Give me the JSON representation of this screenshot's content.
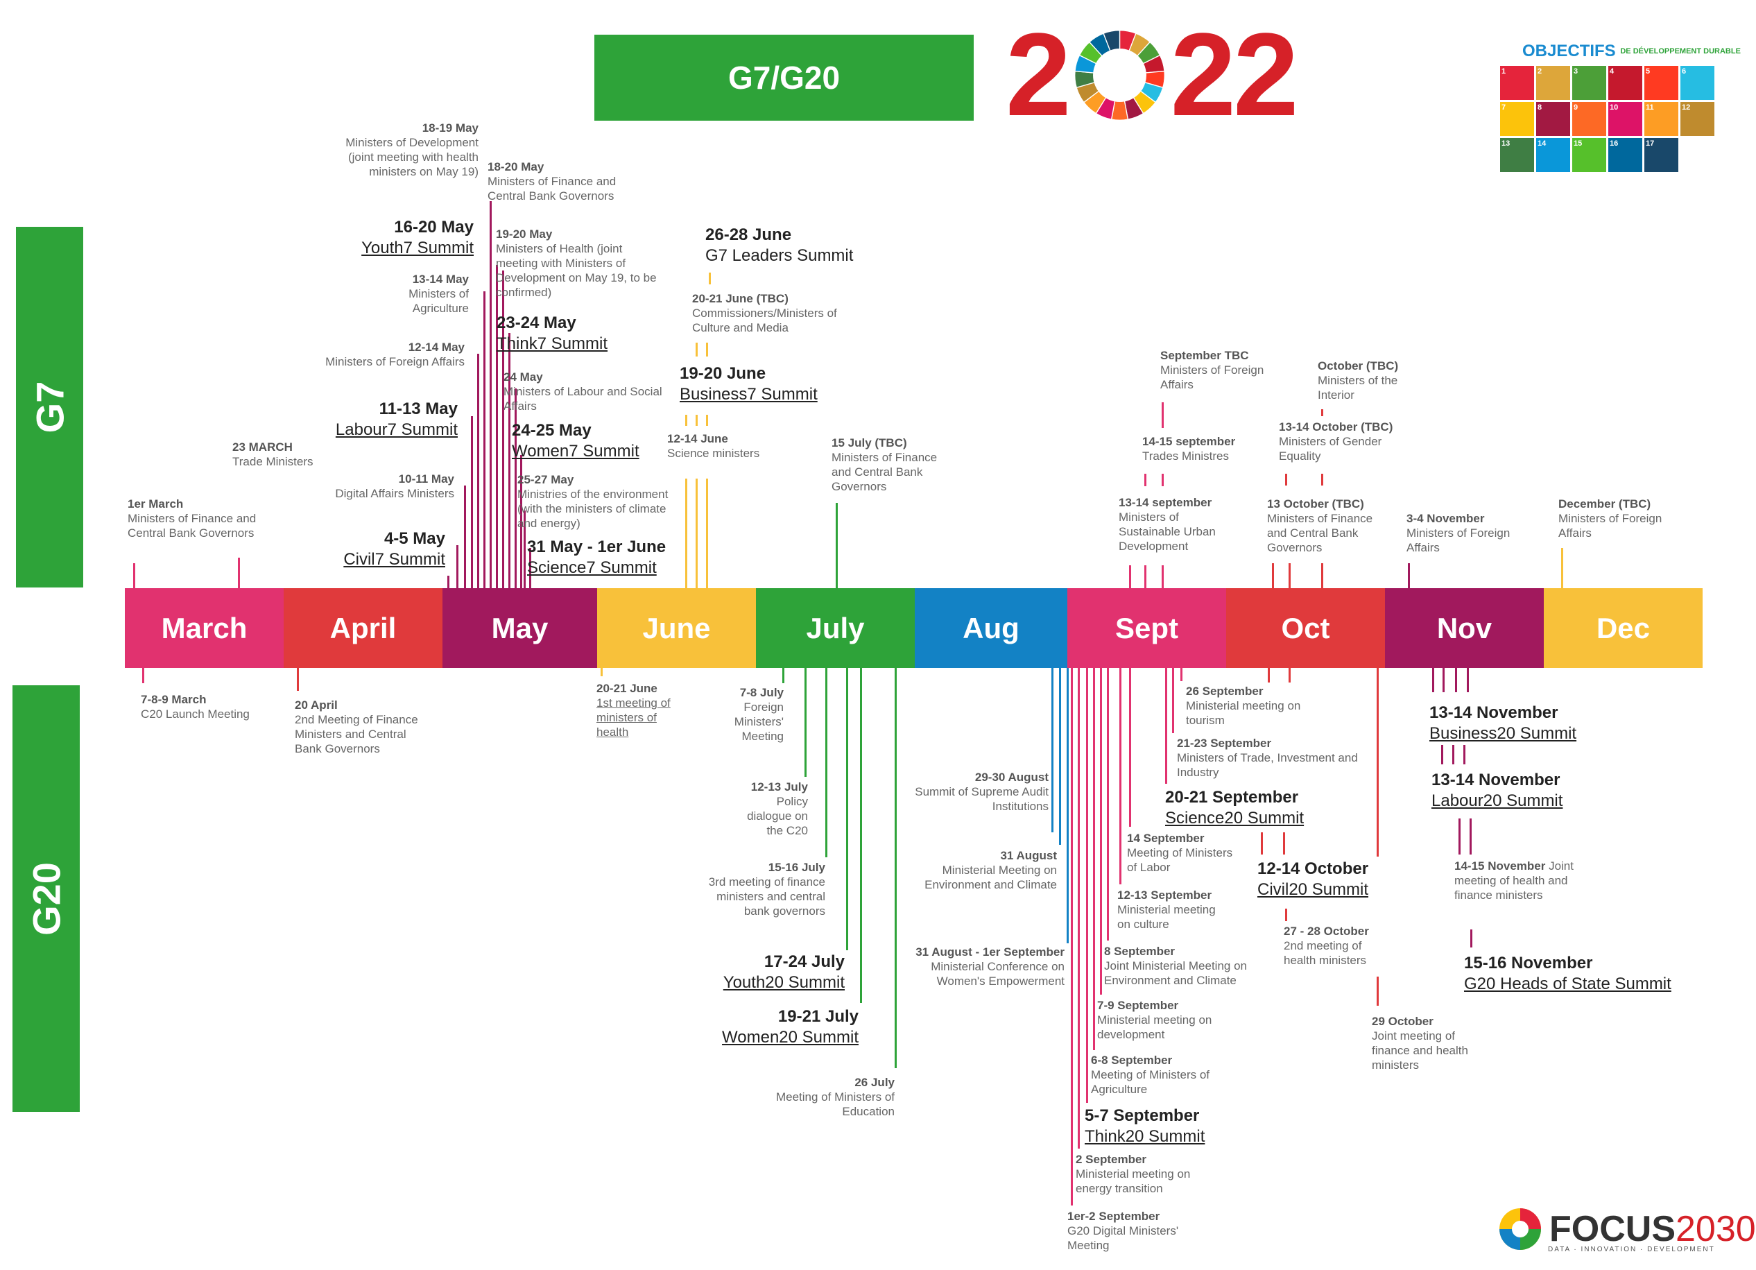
{
  "header": {
    "title": "G7/G20",
    "year_left": "2",
    "year_right": "22"
  },
  "sides": {
    "g7": "G7",
    "g20": "G20"
  },
  "sdg": {
    "title_main": "OBJECTIFS",
    "title_sub": "DE DÉVELOPPEMENT DURABLE",
    "tiles": [
      {
        "num": "1",
        "color": "#e5243b"
      },
      {
        "num": "2",
        "color": "#dda63a"
      },
      {
        "num": "3",
        "color": "#4c9f38"
      },
      {
        "num": "4",
        "color": "#c5192d"
      },
      {
        "num": "5",
        "color": "#ff3a21"
      },
      {
        "num": "6",
        "color": "#26bde2"
      },
      {
        "num": "7",
        "color": "#fcc30b"
      },
      {
        "num": "8",
        "color": "#a21942"
      },
      {
        "num": "9",
        "color": "#fd6925"
      },
      {
        "num": "10",
        "color": "#dd1367"
      },
      {
        "num": "11",
        "color": "#fd9d24"
      },
      {
        "num": "12",
        "color": "#bf8b2e"
      },
      {
        "num": "13",
        "color": "#3f7e44"
      },
      {
        "num": "14",
        "color": "#0a97d9"
      },
      {
        "num": "15",
        "color": "#56c02b"
      },
      {
        "num": "16",
        "color": "#00689d"
      },
      {
        "num": "17",
        "color": "#19486a"
      },
      {
        "num": "",
        "color": "#ffffff"
      }
    ]
  },
  "months": [
    {
      "label": "March",
      "color": "#e1326f"
    },
    {
      "label": "April",
      "color": "#e03a3c"
    },
    {
      "label": "May",
      "color": "#a1195d"
    },
    {
      "label": "June",
      "color": "#f8c13a"
    },
    {
      "label": "July",
      "color": "#2ea339"
    },
    {
      "label": "Aug",
      "color": "#1382c5"
    },
    {
      "label": "Sept",
      "color": "#e1326f"
    },
    {
      "label": "Oct",
      "color": "#e03a3c"
    },
    {
      "label": "Nov",
      "color": "#a1195d"
    },
    {
      "label": "Dec",
      "color": "#f8c13a"
    }
  ],
  "g7_events": {
    "mar1": {
      "date": "1er March",
      "text": "Ministers of Finance and\nCentral Bank Governors"
    },
    "mar23": {
      "date": "23 MARCH",
      "text": "Trade Ministers"
    },
    "may4": {
      "date": "4-5 May",
      "name": "Civil7 Summit"
    },
    "may10": {
      "date": "10-11 May",
      "text": "Digital Affairs Ministers"
    },
    "may11": {
      "date": "11-13 May",
      "name": "Labour7 Summit"
    },
    "may12": {
      "date": "12-14 May",
      "text": "Ministers of Foreign Affairs"
    },
    "may13": {
      "date": "13-14 May",
      "text": "Ministers of\nAgriculture"
    },
    "may16": {
      "date": "16-20 May",
      "name": "Youth7 Summit"
    },
    "may18a": {
      "date": "18-19 May",
      "text": "Ministers of Development\n(joint meeting with health\nministers on May 19)"
    },
    "may18b": {
      "date": "18-20 May",
      "text": "Ministers of Finance and\nCentral Bank Governors"
    },
    "may19": {
      "date": "19-20 May",
      "text": "Ministers of Health (joint\nmeeting with Ministers of\nDevelopment on May 19, to be\nconfirmed)"
    },
    "may23": {
      "date": "23-24 May",
      "name": "Think7 Summit"
    },
    "may24a": {
      "date": "24 May",
      "text": "Ministers of Labour and Social\nAffairs"
    },
    "may24b": {
      "date": "24-25 May",
      "name": "Women7 Summit"
    },
    "may25": {
      "date": "25-27 May",
      "text": "Ministries of the environment\n(with the ministers of climate\nand energy)"
    },
    "may31": {
      "date": "31 May - 1er June",
      "name": "Science7 Summit"
    },
    "jun12": {
      "date": "12-14 June",
      "text": "Science ministers"
    },
    "jun19": {
      "date": "19-20 June",
      "name": "Business7 Summit"
    },
    "jun20": {
      "date": "20-21 June (TBC)",
      "text": "Commissioners/Ministers of\nCulture and Media"
    },
    "jun26": {
      "date": "26-28 June",
      "text": "G7 Leaders Summit"
    },
    "jul15": {
      "date": "15 July (TBC)",
      "text": "Ministers of Finance\nand Central Bank\nGovernors"
    },
    "sep13": {
      "date": "13-14 september",
      "text": "Ministers of\nSustainable Urban\nDevelopment"
    },
    "sep14": {
      "date": "14-15 september",
      "text": "Trades Ministres"
    },
    "septbc": {
      "date": "September TBC",
      "text": "Ministers of Foreign\nAffairs"
    },
    "oct13a": {
      "date": "13 October (TBC)",
      "text": "Ministers of Finance\nand Central Bank\nGovernors"
    },
    "oct13b": {
      "date": "13-14 October (TBC)",
      "text": "Ministers of Gender\nEquality"
    },
    "octtbc": {
      "date": "October (TBC)",
      "text": "Ministers of the\nInterior"
    },
    "nov3": {
      "date": "3-4 November",
      "text": "Ministers of Foreign\nAffairs"
    },
    "dec": {
      "date": "December (TBC)",
      "text": "Ministers of Foreign\nAffairs"
    }
  },
  "g20_events": {
    "mar7": {
      "date": "7-8-9 March",
      "text": "C20 Launch Meeting"
    },
    "apr20": {
      "date": "20 April",
      "text": "2nd Meeting of Finance\nMinisters and Central\nBank Governors"
    },
    "jun20": {
      "date": "20-21 June",
      "text": "1st meeting of\nministers of\nhealth"
    },
    "jul7": {
      "date": "7-8 July",
      "text": "Foreign\nMinisters'\nMeeting"
    },
    "jul12": {
      "date": "12-13 July",
      "text": "Policy\ndialogue on\nthe C20"
    },
    "jul15": {
      "date": "15-16 July",
      "text": "3rd meeting of finance\nministers and central\nbank governors"
    },
    "jul17": {
      "date": "17-24 July",
      "name": "Youth20 Summit"
    },
    "jul19": {
      "date": "19-21 July",
      "name": "Women20 Summit"
    },
    "jul26": {
      "date": "26 July",
      "text": "Meeting of Ministers of\nEducation"
    },
    "aug29": {
      "date": "29-30 August",
      "text": "Summit of Supreme Audit\nInstitutions"
    },
    "aug31": {
      "date": "31 August",
      "text": "Ministerial Meeting on\nEnvironment and Climate"
    },
    "aug31b": {
      "date": "31 August - 1er September",
      "text": "Ministerial Conference on\nWomen's Empowerment"
    },
    "sep1": {
      "date": "1er-2 September",
      "text": "G20 Digital Ministers'\nMeeting"
    },
    "sep2": {
      "date": "2 September",
      "text": "Ministerial meeting on\nenergy transition"
    },
    "sep5": {
      "date": "5-7 September",
      "name": "Think20 Summit"
    },
    "sep6": {
      "date": "6-8 September",
      "text": "Meeting of Ministers of\nAgriculture"
    },
    "sep7": {
      "date": "7-9 September",
      "text": "Ministerial meeting on\ndevelopment"
    },
    "sep8": {
      "date": "8 September",
      "text": "Joint Ministerial Meeting on\nEnvironment and Climate"
    },
    "sep12": {
      "date": "12-13 September",
      "text": "Ministerial meeting\non culture"
    },
    "sep14": {
      "date": "14 September",
      "text": "Meeting of Ministers\nof Labor"
    },
    "sep20": {
      "date": "20-21 September",
      "name": "Science20 Summit"
    },
    "sep21": {
      "date": "21-23 September",
      "text": "Ministers of Trade, Investment and\nIndustry"
    },
    "sep26": {
      "date": "26 September",
      "text": "Ministerial meeting on\ntourism"
    },
    "oct12": {
      "date": "12-14 October",
      "name": "Civil20 Summit"
    },
    "oct27": {
      "date": "27 - 28 October",
      "text": "2nd meeting of\nhealth ministers"
    },
    "oct29": {
      "date": "29 October",
      "text": "Joint meeting of\nfinance and health\nministers"
    },
    "nov13a": {
      "date": "13-14 November",
      "name": "Business20 Summit"
    },
    "nov13b": {
      "date": "13-14 November",
      "name": "Labour20 Summit"
    },
    "nov14": {
      "date": "14-15 November",
      "text": "Joint\nmeeting of health and\nfinance ministers"
    },
    "nov15": {
      "date": "15-16 November",
      "name": "G20 Heads of State Summit"
    }
  },
  "footer": {
    "brand": "FOCUS",
    "brand_year": "2030",
    "tagline": "DATA · INNOVATION · DEVELOPMENT"
  }
}
